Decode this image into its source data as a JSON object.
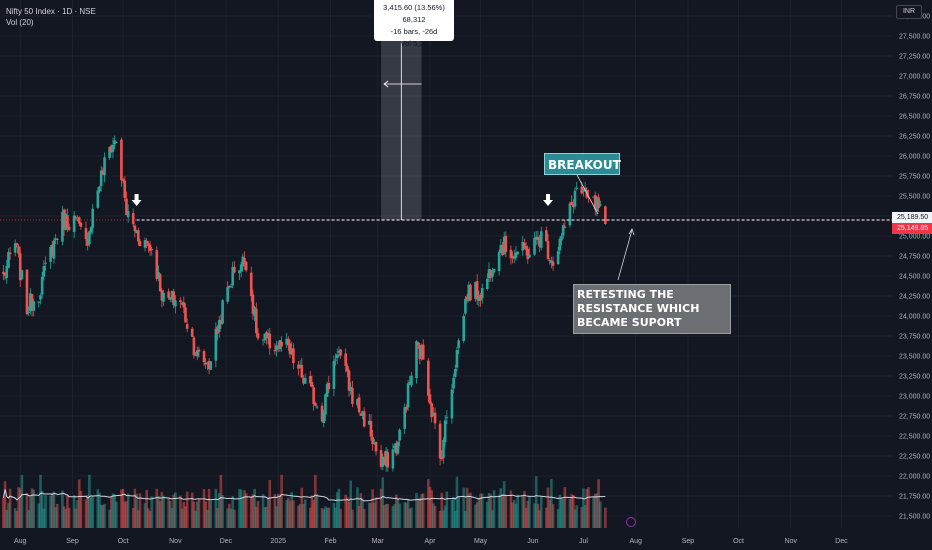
{
  "legend": {
    "symbol": "Nifty 50 Index · 1D · NSE",
    "volume": "Vol (20)"
  },
  "currency_label": "INR",
  "measure": {
    "line1": "3,415.60 (13.56%) 68,312",
    "line2": "-16 bars, -26d",
    "line3": "Vol 5.28"
  },
  "annotations": {
    "breakout": "BREAKOUT",
    "retest": [
      "RETESTING THE",
      "RESISTANCE WHICH",
      "BECAME SUPORT"
    ]
  },
  "price_labels": {
    "last": "25,189.50",
    "close": "25,149.85"
  },
  "colors": {
    "background": "#131722",
    "up": "#26a69a",
    "down": "#ef5350",
    "grid": "#1e222d",
    "volume_ma": "#d1d4dc"
  },
  "chart_data": {
    "type": "candlestick",
    "title": "Nifty 50 Index · 1D · NSE",
    "y_axis": {
      "ticks": [
        21500,
        21750,
        22000,
        22250,
        22500,
        22750,
        23000,
        23250,
        23500,
        23750,
        24000,
        24250,
        24500,
        24750,
        25000,
        25250,
        25500,
        25750,
        26000,
        26250,
        26500,
        26750,
        27000,
        27250,
        27500,
        27750
      ],
      "tick_labels": [
        "21,500.00",
        "21,750.00",
        "22,000.00",
        "22,250.00",
        "22,500.00",
        "22,750.00",
        "23,000.00",
        "23,250.00",
        "23,500.00",
        "23,750.00",
        "24,000.00",
        "24,250.00",
        "24,500.00",
        "24,750.00",
        "25,000.00",
        "25,250.00",
        "25,500.00",
        "25,750.00",
        "26,000.00",
        "26,250.00",
        "26,500.00",
        "26,750.00",
        "27,000.00",
        "27,250.00",
        "27,500.00",
        "27,750.00"
      ],
      "range": [
        21350,
        27950
      ]
    },
    "x_axis": {
      "labels": [
        "Aug",
        "Sep",
        "Oct",
        "Nov",
        "Dec",
        "2025",
        "Feb",
        "Mar",
        "Apr",
        "May",
        "Jun",
        "Jul",
        "Aug",
        "Sep",
        "Oct",
        "Nov",
        "Dec"
      ],
      "range": [
        "2024-07-20",
        "2025-12-31"
      ]
    },
    "resistance_level": 25200,
    "series_close_anchors": [
      [
        "2024-07-22",
        24500
      ],
      [
        "2024-07-29",
        24900
      ],
      [
        "2024-08-05",
        24100
      ],
      [
        "2024-08-12",
        24300
      ],
      [
        "2024-08-19",
        24800
      ],
      [
        "2024-08-26",
        25200
      ],
      [
        "2024-09-02",
        25200
      ],
      [
        "2024-09-09",
        24900
      ],
      [
        "2024-09-16",
        25600
      ],
      [
        "2024-09-23",
        26100
      ],
      [
        "2024-09-27",
        26200
      ],
      [
        "2024-10-03",
        25300
      ],
      [
        "2024-10-10",
        25000
      ],
      [
        "2024-10-18",
        24850
      ],
      [
        "2024-10-25",
        24200
      ],
      [
        "2024-11-04",
        24200
      ],
      [
        "2024-11-14",
        23500
      ],
      [
        "2024-11-21",
        23400
      ],
      [
        "2024-11-29",
        24100
      ],
      [
        "2024-12-06",
        24600
      ],
      [
        "2024-12-13",
        24700
      ],
      [
        "2024-12-20",
        23700
      ],
      [
        "2025-01-06",
        23600
      ],
      [
        "2025-01-16",
        23200
      ],
      [
        "2025-01-27",
        22800
      ],
      [
        "2025-02-05",
        23600
      ],
      [
        "2025-02-14",
        23000
      ],
      [
        "2025-02-24",
        22600
      ],
      [
        "2025-03-03",
        22100
      ],
      [
        "2025-03-13",
        22400
      ],
      [
        "2025-03-24",
        23600
      ],
      [
        "2025-03-28",
        23500
      ],
      [
        "2025-04-07",
        22200
      ],
      [
        "2025-04-15",
        23300
      ],
      [
        "2025-04-23",
        24300
      ],
      [
        "2025-05-02",
        24300
      ],
      [
        "2025-05-12",
        24900
      ],
      [
        "2025-05-20",
        24800
      ],
      [
        "2025-05-29",
        24800
      ],
      [
        "2025-06-06",
        25000
      ],
      [
        "2025-06-13",
        24700
      ],
      [
        "2025-06-20",
        25100
      ],
      [
        "2025-06-27",
        25600
      ],
      [
        "2025-07-03",
        25450
      ],
      [
        "2025-07-10",
        25350
      ],
      [
        "2025-07-14",
        25150
      ]
    ],
    "measure_range": {
      "start": "2025-03-03",
      "end": "2025-03-27"
    },
    "arrows": [
      "2024-10-09",
      "2025-06-10"
    ]
  }
}
